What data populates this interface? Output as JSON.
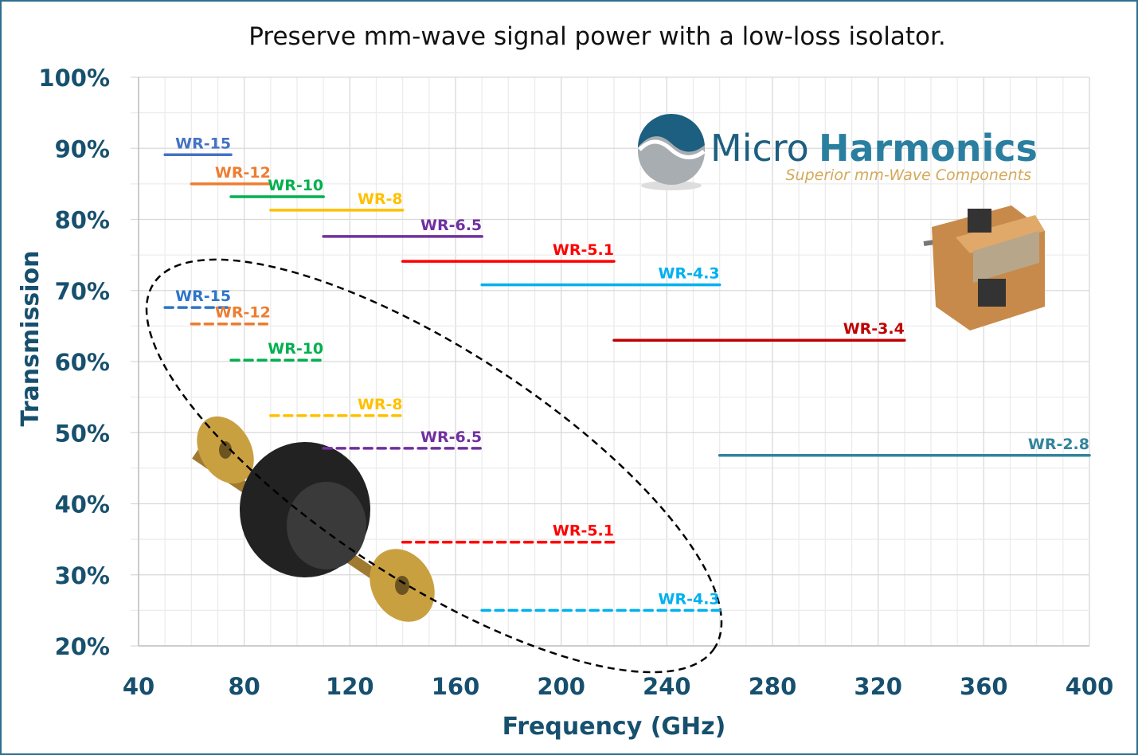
{
  "chart_data": {
    "type": "line",
    "title": "Preserve mm-wave signal power with a low-loss isolator.",
    "xlabel": "Frequency (GHz)",
    "ylabel": "Transmission",
    "xlim": [
      40,
      400
    ],
    "ylim": [
      20,
      100
    ],
    "x_ticks": [
      "40",
      "80",
      "120",
      "160",
      "200",
      "240",
      "280",
      "320",
      "360",
      "400"
    ],
    "y_ticks": [
      "20%",
      "30%",
      "40%",
      "50%",
      "60%",
      "70%",
      "80%",
      "90%",
      "100%"
    ],
    "grid": true,
    "logo": {
      "name_light": "Micro",
      "name_bold": "Harmonics",
      "tagline": "Superior mm-Wave Components"
    },
    "series_solid": [
      {
        "name": "WR-15",
        "color": "#4472c4",
        "x": [
          50,
          75
        ],
        "y": 89.1
      },
      {
        "name": "WR-12",
        "color": "#ed7d31",
        "x": [
          60,
          90
        ],
        "y": 85.0
      },
      {
        "name": "WR-10",
        "color": "#00b050",
        "x": [
          75,
          110
        ],
        "y": 83.2
      },
      {
        "name": "WR-8",
        "color": "#ffc000",
        "x": [
          90,
          140
        ],
        "y": 81.3
      },
      {
        "name": "WR-6.5",
        "color": "#7030a0",
        "x": [
          110,
          170
        ],
        "y": 77.6
      },
      {
        "name": "WR-5.1",
        "color": "#ff0000",
        "x": [
          140,
          220
        ],
        "y": 74.1
      },
      {
        "name": "WR-4.3",
        "color": "#00b0f0",
        "x": [
          170,
          260
        ],
        "y": 70.8
      },
      {
        "name": "WR-3.4",
        "color": "#c00000",
        "x": [
          220,
          330
        ],
        "y": 63.0
      },
      {
        "name": "WR-2.8",
        "color": "#31849b",
        "x": [
          260,
          400
        ],
        "y": 46.8
      }
    ],
    "series_dashed": [
      {
        "name": "WR-15",
        "color": "#2e75c6",
        "x": [
          50,
          75
        ],
        "y": 67.6
      },
      {
        "name": "WR-12",
        "color": "#ed7d31",
        "x": [
          60,
          90
        ],
        "y": 65.3
      },
      {
        "name": "WR-10",
        "color": "#00b050",
        "x": [
          75,
          110
        ],
        "y": 60.2
      },
      {
        "name": "WR-8",
        "color": "#ffc000",
        "x": [
          90,
          140
        ],
        "y": 52.4
      },
      {
        "name": "WR-6.5",
        "color": "#7030a0",
        "x": [
          110,
          170
        ],
        "y": 47.8
      },
      {
        "name": "WR-5.1",
        "color": "#ff0000",
        "x": [
          140,
          220
        ],
        "y": 34.6
      },
      {
        "name": "WR-4.3",
        "color": "#00b0f0",
        "x": [
          170,
          260
        ],
        "y": 25.0
      }
    ]
  }
}
